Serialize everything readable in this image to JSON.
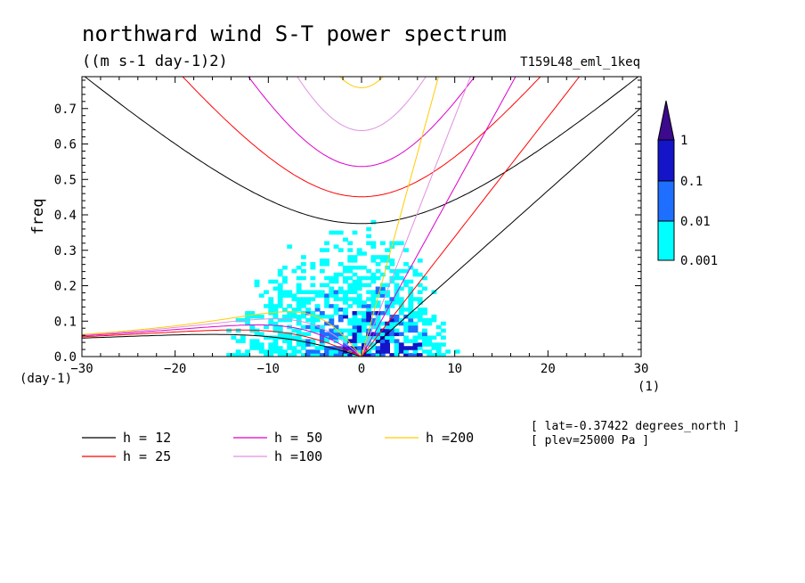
{
  "chart_data": {
    "type": "heatmap",
    "title": "northward wind S-T power spectrum",
    "subtitle": "((m s-1 day-1)2)",
    "run_label": "T159L48_eml_1keq",
    "xlabel": "wvn",
    "ylabel": "freq",
    "xunit": "(1)",
    "yunit": "(day-1)",
    "xlim": [
      -30,
      30
    ],
    "ylim": [
      0,
      0.79
    ],
    "xticks": [
      -30,
      -20,
      -10,
      0,
      10,
      20,
      30
    ],
    "yticks": [
      0.0,
      0.1,
      0.2,
      0.3,
      0.4,
      0.5,
      0.6,
      0.7
    ],
    "colorbar": {
      "levels": [
        "0.001",
        "0.01",
        "0.1",
        "1"
      ],
      "colors": [
        "#00ffff",
        "#1e6eff",
        "#1414c8",
        "#3c0a8c"
      ]
    },
    "dispersion_curves": [
      {
        "name": "h = 12",
        "h": 12,
        "color": "#000000"
      },
      {
        "name": "h = 25",
        "h": 25,
        "color": "#ff0000"
      },
      {
        "name": "h = 50",
        "h": 50,
        "color": "#dd00cc"
      },
      {
        "name": "h =100",
        "h": 100,
        "color": "#e090e0"
      },
      {
        "name": "h =200",
        "h": 200,
        "color": "#ffcc00"
      }
    ],
    "info": [
      "[ lat=-0.37422 degrees_north ]",
      "[ plev=25000 Pa ]"
    ]
  }
}
